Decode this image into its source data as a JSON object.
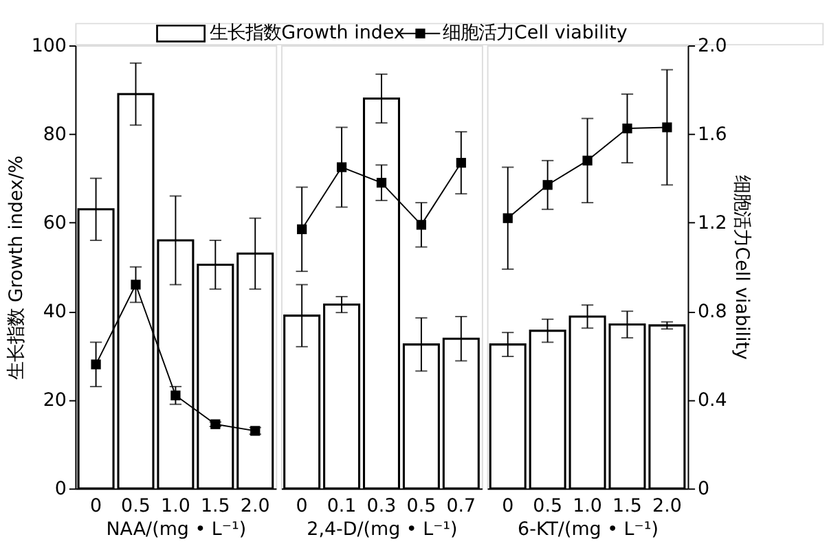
{
  "chart_data": [
    {
      "type": "bar",
      "categories": [
        "0",
        "0.5",
        "1.0",
        "1.5",
        "2.0"
      ],
      "xlabel": "NAA/(mg • L⁻¹)",
      "ylabel": "生长指数 Growth index/%",
      "ylim": [
        0,
        100
      ],
      "yticks": [
        0,
        20,
        40,
        60,
        80,
        100
      ],
      "y2lim": [
        0,
        2.0
      ],
      "tick_labels": "xy",
      "legend": "top",
      "grid": false,
      "series": [
        {
          "name": "生长指数Growth index",
          "color": "#000000",
          "values": [
            63,
            89,
            56,
            50.5,
            53
          ],
          "errors": [
            7,
            7,
            10,
            5.5,
            8
          ]
        },
        {
          "name": "细胞活力Cell viability",
          "type": "line",
          "axis": "y2",
          "marker": "square",
          "color": "#000000",
          "values": [
            0.56,
            0.92,
            0.42,
            0.29,
            0.26
          ],
          "errors": [
            0.1,
            0.08,
            0.04,
            0.01,
            0.015
          ]
        }
      ]
    },
    {
      "type": "bar",
      "categories": [
        "0",
        "0.1",
        "0.3",
        "0.5",
        "0.7"
      ],
      "xlabel": "2,4-D/(mg • L⁻¹)",
      "ylim": [
        0,
        100
      ],
      "y2lim": [
        0,
        2.0
      ],
      "tick_labels": "x",
      "grid": false,
      "series": [
        {
          "color": "#000000",
          "values": [
            39,
            41.5,
            88,
            32.5,
            33.8
          ],
          "errors": [
            7,
            1.8,
            5.5,
            6,
            5
          ]
        },
        {
          "type": "line",
          "axis": "y2",
          "marker": "square",
          "color": "#000000",
          "values": [
            1.17,
            1.45,
            1.38,
            1.19,
            1.47
          ],
          "errors": [
            0.19,
            0.18,
            0.08,
            0.1,
            0.14
          ]
        }
      ]
    },
    {
      "type": "bar",
      "categories": [
        "0",
        "0.5",
        "1.0",
        "1.5",
        "2.0"
      ],
      "xlabel": "6-KT/(mg • L⁻¹)",
      "y2label": "细胞活力Cell viability",
      "ylim": [
        0,
        100
      ],
      "y2lim": [
        0,
        2.0
      ],
      "y2ticks": [
        0,
        0.4,
        0.8,
        1.2,
        1.6,
        {
          "value": 2,
          "label": "2.0"
        }
      ],
      "tick_labels": "xy2",
      "grid": false,
      "series": [
        {
          "color": "#000000",
          "values": [
            32.5,
            35.6,
            38.8,
            37,
            36.8
          ],
          "errors": [
            2.7,
            2.6,
            2.6,
            3,
            0.8
          ]
        },
        {
          "type": "line",
          "axis": "y2",
          "marker": "square",
          "color": "#000000",
          "values": [
            1.22,
            1.37,
            1.48,
            1.625,
            1.63
          ],
          "errors": [
            0.23,
            0.11,
            0.19,
            0.155,
            0.26
          ]
        }
      ]
    }
  ]
}
